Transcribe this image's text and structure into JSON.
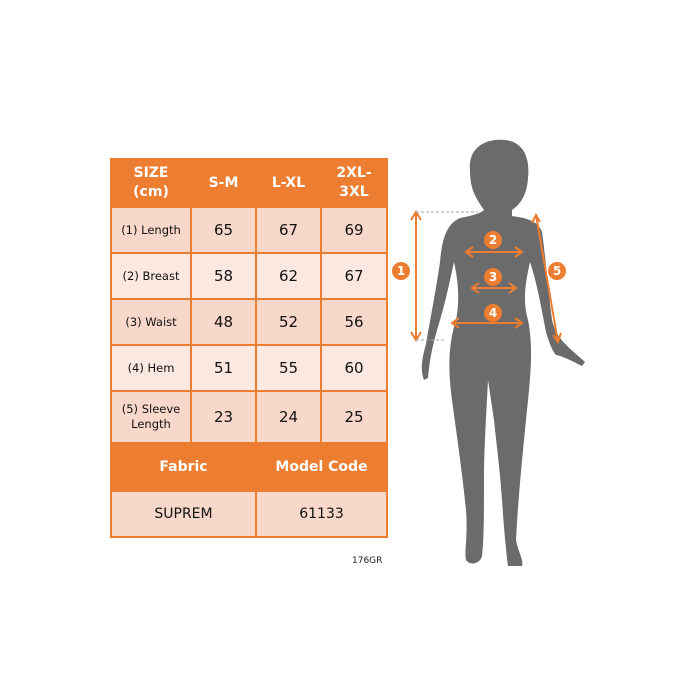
{
  "table": {
    "headers": [
      "SIZE\n(cm)",
      "S-M",
      "L-XL",
      "2XL-\n3XL"
    ],
    "rows": [
      {
        "label": "(1) Length",
        "values": [
          "65",
          "67",
          "69"
        ]
      },
      {
        "label": "(2) Breast",
        "values": [
          "58",
          "62",
          "67"
        ]
      },
      {
        "label": "(3) Waist",
        "values": [
          "48",
          "52",
          "56"
        ]
      },
      {
        "label": "(4) Hem",
        "values": [
          "51",
          "55",
          "60"
        ]
      },
      {
        "label": "(5) Sleeve Length",
        "values": [
          "23",
          "24",
          "25"
        ]
      }
    ],
    "fabric_header": "Fabric",
    "model_code_header": "Model Code",
    "fabric": "SUPREM",
    "model_code": "61133"
  },
  "model_size": "176GR",
  "figure": {
    "markers": [
      "1",
      "2",
      "3",
      "4",
      "5"
    ]
  },
  "colors": {
    "accent": "#ED7D31",
    "silhouette": "#6B6B6B"
  }
}
